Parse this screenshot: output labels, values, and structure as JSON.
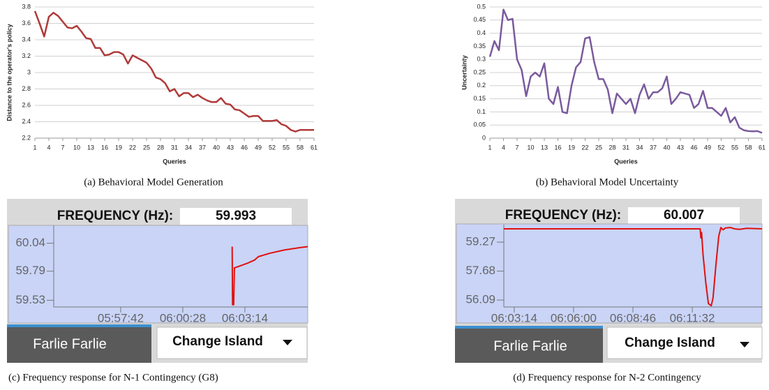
{
  "chart_data": [
    {
      "type": "line",
      "caption": "(a) Behavioral Model Generation",
      "xlabel": "Queries",
      "ylabel": "Distance to the operator's policy",
      "x": [
        1,
        2,
        3,
        4,
        5,
        6,
        7,
        8,
        9,
        10,
        11,
        12,
        13,
        14,
        15,
        16,
        17,
        18,
        19,
        20,
        21,
        22,
        23,
        24,
        25,
        26,
        27,
        28,
        29,
        30,
        31,
        32,
        33,
        34,
        35,
        36,
        37,
        38,
        39,
        40,
        41,
        42,
        43,
        44,
        45,
        46,
        47,
        48,
        49,
        50,
        51,
        52,
        53,
        54,
        55,
        56,
        57,
        58,
        59,
        60,
        61
      ],
      "xlim": [
        1,
        61
      ],
      "xticks": [
        1,
        4,
        7,
        10,
        13,
        16,
        19,
        22,
        25,
        28,
        31,
        34,
        37,
        40,
        43,
        46,
        49,
        52,
        55,
        58,
        61
      ],
      "ylim": [
        2.2,
        3.8
      ],
      "yticks": [
        2.2,
        2.4,
        2.6,
        2.8,
        3,
        3.2,
        3.4,
        3.6,
        3.8
      ],
      "grid": true,
      "series": [
        {
          "color": "#b03a3a",
          "values": [
            3.75,
            3.6,
            3.44,
            3.68,
            3.73,
            3.69,
            3.62,
            3.55,
            3.54,
            3.57,
            3.5,
            3.42,
            3.41,
            3.3,
            3.3,
            3.21,
            3.22,
            3.25,
            3.25,
            3.22,
            3.11,
            3.21,
            3.18,
            3.15,
            3.12,
            3.05,
            2.94,
            2.92,
            2.87,
            2.77,
            2.8,
            2.71,
            2.75,
            2.75,
            2.7,
            2.73,
            2.69,
            2.66,
            2.64,
            2.64,
            2.69,
            2.62,
            2.61,
            2.55,
            2.54,
            2.5,
            2.46,
            2.47,
            2.47,
            2.41,
            2.41,
            2.41,
            2.42,
            2.37,
            2.35,
            2.3,
            2.28,
            2.3,
            2.3,
            2.3,
            2.3
          ]
        }
      ]
    },
    {
      "type": "line",
      "caption": "(b) Behavioral Model Uncertainty",
      "xlabel": "Queries",
      "ylabel": "Uncertainty",
      "x": [
        1,
        2,
        3,
        4,
        5,
        6,
        7,
        8,
        9,
        10,
        11,
        12,
        13,
        14,
        15,
        16,
        17,
        18,
        19,
        20,
        21,
        22,
        23,
        24,
        25,
        26,
        27,
        28,
        29,
        30,
        31,
        32,
        33,
        34,
        35,
        36,
        37,
        38,
        39,
        40,
        41,
        42,
        43,
        44,
        45,
        46,
        47,
        48,
        49,
        50,
        51,
        52,
        53,
        54,
        55,
        56,
        57,
        58,
        59,
        60,
        61
      ],
      "xlim": [
        1,
        61
      ],
      "xticks": [
        1,
        4,
        7,
        10,
        13,
        16,
        19,
        22,
        25,
        28,
        31,
        34,
        37,
        40,
        43,
        46,
        49,
        52,
        55,
        58,
        61
      ],
      "ylim": [
        0,
        0.5
      ],
      "yticks": [
        0,
        0.05,
        0.1,
        0.15,
        0.2,
        0.25,
        0.3,
        0.35,
        0.4,
        0.45,
        0.5
      ],
      "grid": true,
      "series": [
        {
          "color": "#7a5a9e",
          "values": [
            0.31,
            0.37,
            0.335,
            0.49,
            0.45,
            0.455,
            0.3,
            0.26,
            0.16,
            0.235,
            0.25,
            0.235,
            0.285,
            0.15,
            0.13,
            0.195,
            0.1,
            0.095,
            0.2,
            0.27,
            0.29,
            0.38,
            0.385,
            0.29,
            0.225,
            0.225,
            0.185,
            0.095,
            0.17,
            0.15,
            0.13,
            0.15,
            0.095,
            0.165,
            0.205,
            0.15,
            0.175,
            0.175,
            0.19,
            0.235,
            0.13,
            0.15,
            0.175,
            0.17,
            0.165,
            0.115,
            0.13,
            0.18,
            0.115,
            0.115,
            0.1,
            0.085,
            0.115,
            0.06,
            0.08,
            0.04,
            0.03,
            0.027,
            0.026,
            0.027,
            0.02
          ]
        }
      ]
    },
    {
      "type": "time-line",
      "caption": "(c) Frequency response for N-1 Contingency (G8)",
      "readout_label": "FREQUENCY (Hz):",
      "readout": "59.993",
      "island": "Farlie Farlie",
      "button": "Change Island",
      "x": [
        "06:02:40",
        "06:02:41",
        "06:02:44",
        "06:02:46",
        "06:02:55",
        "06:03:20",
        "06:03:40",
        "06:03:50",
        "06:04:20",
        "06:05:00",
        "06:05:40",
        "06:06:02"
      ],
      "xlim": [
        "05:54:43",
        "06:06:02"
      ],
      "xticks": [
        "05:57:42",
        "06:00:28",
        "06:03:14"
      ],
      "ylim": [
        59.47,
        60.2
      ],
      "yticks": [
        59.53,
        59.79,
        60.04
      ],
      "grid": false,
      "series": [
        {
          "color": "#e01010",
          "values": [
            60.01,
            59.49,
            59.49,
            59.82,
            59.83,
            59.86,
            59.89,
            59.92,
            59.95,
            59.98,
            60.0,
            60.01
          ]
        }
      ]
    },
    {
      "type": "time-line",
      "caption": "(d) Frequency response for N-2 Contingency",
      "readout_label": "FREQUENCY (Hz):",
      "readout": "60.007",
      "island": "Farlie Farlie",
      "button": "Change Island",
      "x": [
        "06:02:45",
        "06:11:54",
        "06:11:56",
        "06:11:58",
        "06:12:02",
        "06:12:10",
        "06:12:17",
        "06:12:25",
        "06:12:30",
        "06:12:38",
        "06:12:46",
        "06:12:52",
        "06:12:58",
        "06:13:05",
        "06:13:19",
        "06:13:30",
        "06:13:44",
        "06:14:04",
        "06:14:47"
      ],
      "xlim": [
        "06:02:45",
        "06:14:47"
      ],
      "xticks": [
        "06:03:14",
        "06:06:00",
        "06:08:46",
        "06:11:32"
      ],
      "ylim": [
        55.71,
        60.23
      ],
      "yticks": [
        56.09,
        57.68,
        59.27
      ],
      "grid": false,
      "series": [
        {
          "color": "#e01010",
          "values": [
            60.0,
            60.0,
            59.5,
            59.8,
            58.6,
            57.0,
            55.9,
            55.78,
            56.2,
            58.0,
            59.6,
            60.07,
            59.95,
            60.05,
            60.07,
            60.0,
            59.97,
            60.03,
            60.0
          ]
        }
      ]
    }
  ]
}
